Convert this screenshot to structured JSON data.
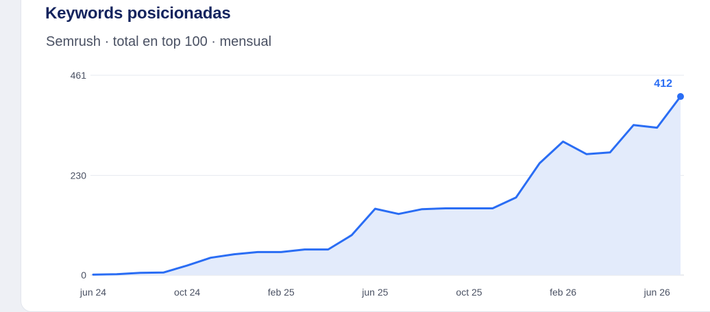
{
  "card": {
    "title": "Keywords posicionadas",
    "subtitle": "Semrush · total en top 100 · mensual"
  },
  "colors": {
    "line": "#2a6df4",
    "area": "#e3ebfb",
    "grid": "#e6e9ef",
    "title": "#14245e"
  },
  "chart_data": {
    "type": "area",
    "title": "Keywords posicionadas",
    "subtitle": "Semrush · total en top 100 · mensual",
    "x": [
      "2024-06",
      "2024-07",
      "2024-08",
      "2024-09",
      "2024-10",
      "2024-11",
      "2024-12",
      "2025-01",
      "2025-02",
      "2025-03",
      "2025-04",
      "2025-05",
      "2025-06",
      "2025-07",
      "2025-08",
      "2025-09",
      "2025-10",
      "2025-11",
      "2025-12",
      "2026-01",
      "2026-02",
      "2026-03",
      "2026-04",
      "2026-05",
      "2026-06",
      "2026-07"
    ],
    "values": [
      1,
      2,
      5,
      6,
      22,
      40,
      48,
      53,
      53,
      59,
      59,
      92,
      153,
      141,
      152,
      154,
      154,
      154,
      179,
      258,
      308,
      279,
      283,
      346,
      340,
      412
    ],
    "x_tick_labels": [
      "jun 24",
      "oct 24",
      "feb 25",
      "jun 25",
      "oct 25",
      "feb 26",
      "jun 26"
    ],
    "x_tick_index": [
      0,
      4,
      8,
      12,
      16,
      20,
      24
    ],
    "y_ticks": [
      0,
      230,
      461
    ],
    "ylim": [
      0,
      461
    ],
    "last_value_label": "412",
    "grid": true
  }
}
